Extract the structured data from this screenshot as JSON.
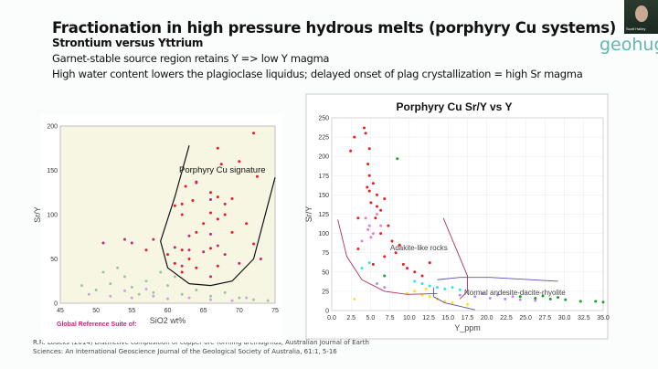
{
  "slide": {
    "title": "Fractionation in high pressure hydrous melts (porphyry Cu systems)",
    "subtitle": "Strontium versus Yttrium",
    "bullets": [
      "Garnet-stable source region retains Y => low Y magma",
      "High water content lowers the plagioclase liquidus; delayed onset of plag crystallization = high Sr magma"
    ],
    "citation": "R.R. Loucks (2014) Distinctive composition of copper-ore-forming arcmagmas, Australian Journal of Earth Sciences: An International Geoscience Journal of the Geological Society of Australia, 61:1, 5-16",
    "logo": "geohug",
    "webcam_name": "Scott Halley"
  },
  "colors": {
    "accent": "#5fb7ad",
    "porphyry": "#e8192c",
    "magenta": "#c2287a"
  },
  "chart_data": [
    {
      "type": "scatter",
      "title": "",
      "annotation": "Porphyry Cu signature",
      "footer": "Global Reference Suite of:",
      "xlabel": "SiO2 wt%",
      "ylabel": "Sr/Y",
      "xlim": [
        45,
        75
      ],
      "ylim": [
        0,
        200
      ],
      "xticks": [
        "45",
        "50",
        "55",
        "60",
        "65",
        "70",
        "75"
      ],
      "yticks": [
        "0",
        "50",
        "100",
        "150",
        "200"
      ],
      "grid": false,
      "boundary": [
        [
          63,
          178
        ],
        [
          61,
          120
        ],
        [
          59,
          70
        ],
        [
          60,
          40
        ],
        [
          63,
          22
        ],
        [
          66,
          20
        ],
        [
          69,
          25
        ],
        [
          72,
          50
        ],
        [
          75,
          142
        ]
      ],
      "series": [
        {
          "name": "",
          "color": "#e8192c",
          "points": [
            [
              72,
              192
            ],
            [
              67,
              175
            ],
            [
              70,
              160
            ],
            [
              67.5,
              157
            ],
            [
              72.5,
              143
            ],
            [
              64,
              137
            ],
            [
              62.5,
              132
            ],
            [
              66,
              125
            ],
            [
              69,
              118
            ],
            [
              62,
              112
            ],
            [
              63.5,
              116
            ],
            [
              67,
              120
            ],
            [
              61,
              110
            ],
            [
              66,
              102
            ],
            [
              62,
              100
            ],
            [
              68,
              100
            ],
            [
              71,
              90
            ],
            [
              65,
              90
            ],
            [
              67,
              95
            ],
            [
              64,
              80
            ],
            [
              69,
              80
            ],
            [
              72,
              67
            ],
            [
              62,
              60
            ],
            [
              66,
              62
            ],
            [
              63,
              50
            ],
            [
              60,
              55
            ],
            [
              61,
              45
            ],
            [
              64,
              40
            ],
            [
              67,
              42
            ],
            [
              57,
              60
            ],
            [
              62,
              35
            ]
          ]
        },
        {
          "name": "",
          "color": "#c2287a",
          "points": [
            [
              64,
              136
            ],
            [
              66,
              117
            ],
            [
              68,
              112
            ],
            [
              63,
              76
            ],
            [
              66,
              78
            ],
            [
              67,
              65
            ],
            [
              65,
              58
            ],
            [
              68,
              55
            ],
            [
              61,
              63
            ],
            [
              63,
              60
            ],
            [
              73,
              50
            ],
            [
              70,
              45
            ],
            [
              58,
              72
            ],
            [
              54,
              72
            ],
            [
              51,
              68
            ],
            [
              55,
              68
            ],
            [
              62,
              42
            ],
            [
              66,
              30
            ]
          ]
        },
        {
          "name": "",
          "color": "#9fc3a8",
          "points": [
            [
              48,
              20
            ],
            [
              50,
              15
            ],
            [
              52,
              22
            ],
            [
              54,
              30
            ],
            [
              55,
              18
            ],
            [
              57,
              25
            ],
            [
              58,
              12
            ],
            [
              60,
              20
            ],
            [
              61,
              30
            ],
            [
              62,
              10
            ],
            [
              64,
              15
            ],
            [
              66,
              8
            ],
            [
              68,
              12
            ],
            [
              70,
              6
            ],
            [
              72,
              4
            ],
            [
              74,
              3
            ],
            [
              53,
              40
            ],
            [
              51,
              35
            ],
            [
              56,
              10
            ],
            [
              59,
              35
            ]
          ]
        },
        {
          "name": "",
          "color": "#c9a4e8",
          "points": [
            [
              49,
              10
            ],
            [
              52,
              8
            ],
            [
              55,
              6
            ],
            [
              58,
              8
            ],
            [
              60,
              5
            ],
            [
              63,
              6
            ],
            [
              66,
              4
            ],
            [
              69,
              3
            ],
            [
              71,
              6
            ],
            [
              54,
              14
            ],
            [
              57,
              16
            ]
          ]
        }
      ]
    },
    {
      "type": "scatter",
      "title": "Porphyry Cu Sr/Y vs Y",
      "xlabel": "Y_ppm",
      "ylabel": "Sr/Y",
      "xlim": [
        0,
        36
      ],
      "ylim": [
        0,
        250
      ],
      "xticks": [
        "0.0",
        "2.5",
        "5.0",
        "7.5",
        "10.0",
        "12.5",
        "15.0",
        "17.5",
        "20.0",
        "22.5",
        "25.0",
        "27.5",
        "30.0",
        "32.5",
        "35.0"
      ],
      "yticks": [
        "0",
        "25",
        "50",
        "75",
        "100",
        "125",
        "150",
        "175",
        "200",
        "225",
        "250"
      ],
      "grid": true,
      "annotations": [
        "Adakite-like rocks",
        "Normal andesite-dacite-rhyolite"
      ],
      "curves": [
        {
          "color": "#b03060",
          "points": [
            [
              0.8,
              118
            ],
            [
              2,
              70
            ],
            [
              4,
              40
            ],
            [
              7,
              25
            ],
            [
              10,
              21
            ],
            [
              14,
              22
            ]
          ]
        },
        {
          "color": "#b03060",
          "points": [
            [
              14.8,
              120
            ],
            [
              16.5,
              80
            ],
            [
              18,
              45
            ],
            [
              18,
              25
            ],
            [
              17,
              15
            ]
          ]
        },
        {
          "color": "#5a4fb0",
          "points": [
            [
              14,
              40
            ],
            [
              17,
              43
            ],
            [
              21,
              43
            ],
            [
              30,
              38
            ]
          ]
        },
        {
          "color": "#5a4fb0",
          "points": [
            [
              13.5,
              30
            ],
            [
              13.5,
              18
            ],
            [
              15,
              10
            ],
            [
              19,
              1
            ]
          ]
        }
      ],
      "series": [
        {
          "name": "",
          "color": "#ee1c1c",
          "points": [
            [
              4.3,
              237
            ],
            [
              4.5,
              230
            ],
            [
              3,
              225
            ],
            [
              2.5,
              207
            ],
            [
              5,
              210
            ],
            [
              4.8,
              190
            ],
            [
              5,
              175
            ],
            [
              5.5,
              165
            ],
            [
              4.7,
              160
            ],
            [
              6,
              150
            ],
            [
              5.2,
              140
            ],
            [
              6.5,
              130
            ],
            [
              7,
              145
            ],
            [
              5.8,
              120
            ],
            [
              7.5,
              110
            ],
            [
              6.5,
              100
            ],
            [
              8,
              90
            ],
            [
              3.5,
              120
            ],
            [
              3.5,
              80
            ],
            [
              8.5,
              75
            ],
            [
              9.5,
              60
            ],
            [
              10,
              55
            ],
            [
              11,
              50
            ],
            [
              12,
              45
            ],
            [
              13,
              62
            ],
            [
              7,
              70
            ],
            [
              5.5,
              60
            ],
            [
              9,
              85
            ],
            [
              6,
              135
            ],
            [
              5,
              155
            ]
          ]
        },
        {
          "name": "",
          "color": "#f07ad0",
          "points": [
            [
              4.5,
              120
            ],
            [
              5,
              110
            ],
            [
              5.5,
              100
            ],
            [
              4.8,
              105
            ],
            [
              6.5,
              110
            ],
            [
              5.2,
              95
            ],
            [
              6,
              125
            ],
            [
              4,
              90
            ]
          ]
        },
        {
          "name": "",
          "color": "#2ee6e6",
          "points": [
            [
              12,
              35
            ],
            [
              13,
              32
            ],
            [
              14,
              30
            ],
            [
              15,
              28
            ],
            [
              16,
              30
            ],
            [
              17,
              27
            ],
            [
              11,
              38
            ],
            [
              5,
              62
            ],
            [
              4,
              55
            ]
          ]
        },
        {
          "name": "",
          "color": "#ffe01a",
          "points": [
            [
              10,
              22
            ],
            [
              11,
              25
            ],
            [
              12,
              20
            ],
            [
              13,
              18
            ],
            [
              14,
              15
            ],
            [
              15,
              12
            ],
            [
              16,
              10
            ],
            [
              18,
              8
            ],
            [
              12.5,
              28
            ],
            [
              3,
              15
            ]
          ]
        },
        {
          "name": "",
          "color": "#c48af5",
          "points": [
            [
              17,
              20
            ],
            [
              19,
              18
            ],
            [
              21,
              16
            ],
            [
              23,
              15
            ],
            [
              25,
              14
            ],
            [
              27,
              13
            ],
            [
              20,
              22
            ],
            [
              22,
              20
            ],
            [
              24,
              18
            ],
            [
              6,
              35
            ],
            [
              7,
              30
            ]
          ]
        },
        {
          "name": "",
          "color": "#1a9e2e",
          "points": [
            [
              25,
              18
            ],
            [
              27,
              16
            ],
            [
              29,
              15
            ],
            [
              31,
              14
            ],
            [
              33,
              12
            ],
            [
              35,
              12
            ],
            [
              36,
              11
            ],
            [
              30,
              17
            ],
            [
              28,
              19
            ],
            [
              8.7,
              197
            ],
            [
              7,
              45
            ]
          ]
        }
      ]
    }
  ]
}
